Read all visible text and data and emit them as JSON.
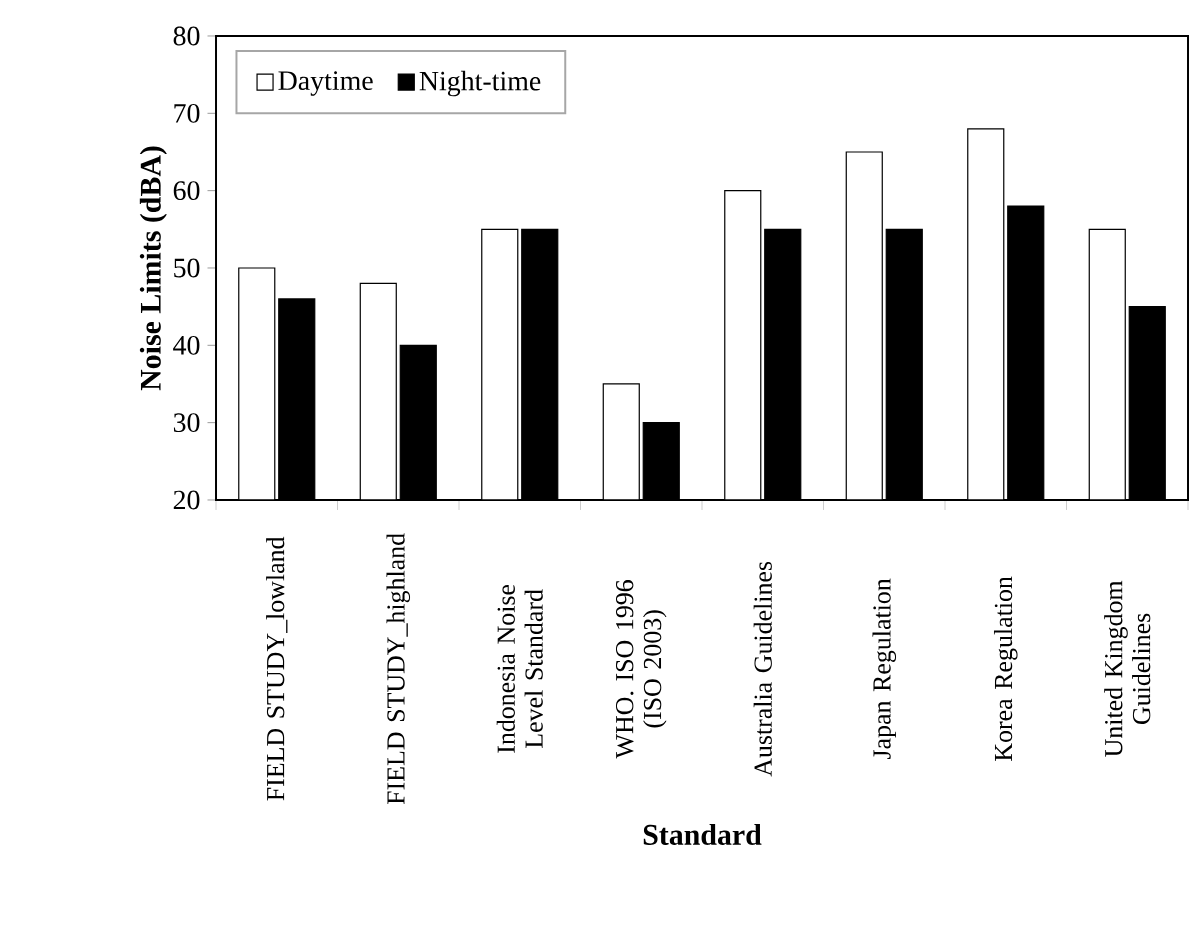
{
  "chart_data": {
    "type": "bar",
    "xlabel": "Standard",
    "ylabel": "Noise Limits (dBA)",
    "categories": [
      "FIELD STUDY_lowland",
      "FIELD STUDY_highland",
      "Indonesia Noise Level Standard",
      "WHO. ISO 1996 (ISO 2003)",
      "Australia Guidelines",
      "Japan Regulation",
      "Korea Regulation",
      "United Kingdom Guidelines"
    ],
    "series": [
      {
        "name": "Daytime",
        "color": "#ffffff",
        "values": [
          50,
          48,
          55,
          35,
          60,
          65,
          68,
          55
        ]
      },
      {
        "name": "Night-time",
        "color": "#000000",
        "values": [
          46,
          40,
          55,
          30,
          55,
          55,
          58,
          45
        ]
      }
    ],
    "ylim": [
      20,
      80
    ],
    "yticks": [
      20,
      30,
      40,
      50,
      60,
      70,
      80
    ],
    "grid": false,
    "legend": "top left"
  }
}
